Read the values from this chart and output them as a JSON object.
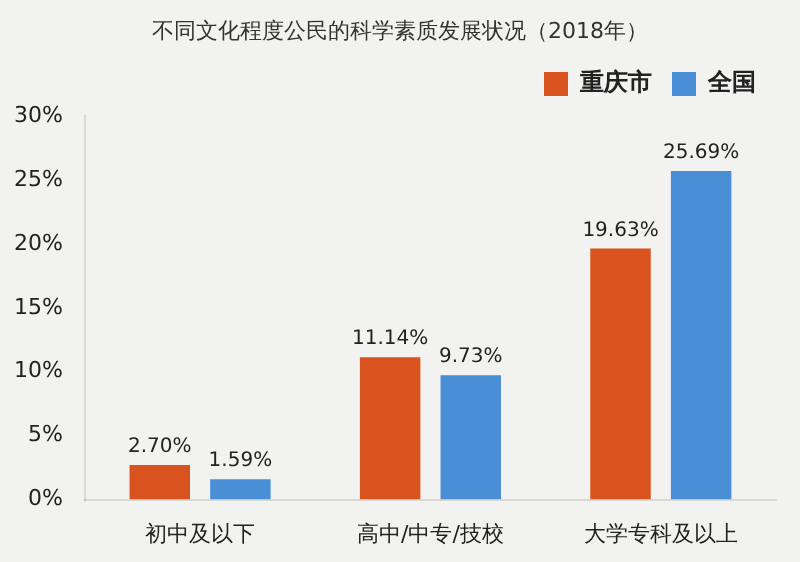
{
  "chart_data": {
    "type": "bar",
    "title": "不同文化程度公民的科学素质发展状况（2018年）",
    "categories": [
      "初中及以下",
      "高中/中专/技校",
      "大学专科及以上"
    ],
    "series": [
      {
        "name": "重庆市",
        "color": "#d9531e",
        "values": [
          2.7,
          11.14,
          19.63
        ],
        "value_labels": [
          "2.70%",
          "11.14%",
          "19.63%"
        ]
      },
      {
        "name": "全国",
        "color": "#4a8ed6",
        "values": [
          1.59,
          9.73,
          25.69
        ],
        "value_labels": [
          "1.59%",
          "9.73%",
          "25.69%"
        ]
      }
    ],
    "ylim": [
      0,
      30
    ],
    "yticks": [
      {
        "value": 0,
        "label": "0%"
      },
      {
        "value": 5,
        "label": "5%"
      },
      {
        "value": 10,
        "label": "10%"
      },
      {
        "value": 15,
        "label": "15%"
      },
      {
        "value": 20,
        "label": "20%"
      },
      {
        "value": 25,
        "label": "25%"
      },
      {
        "value": 30,
        "label": "30%"
      }
    ],
    "grid": false,
    "legend": "top right"
  }
}
